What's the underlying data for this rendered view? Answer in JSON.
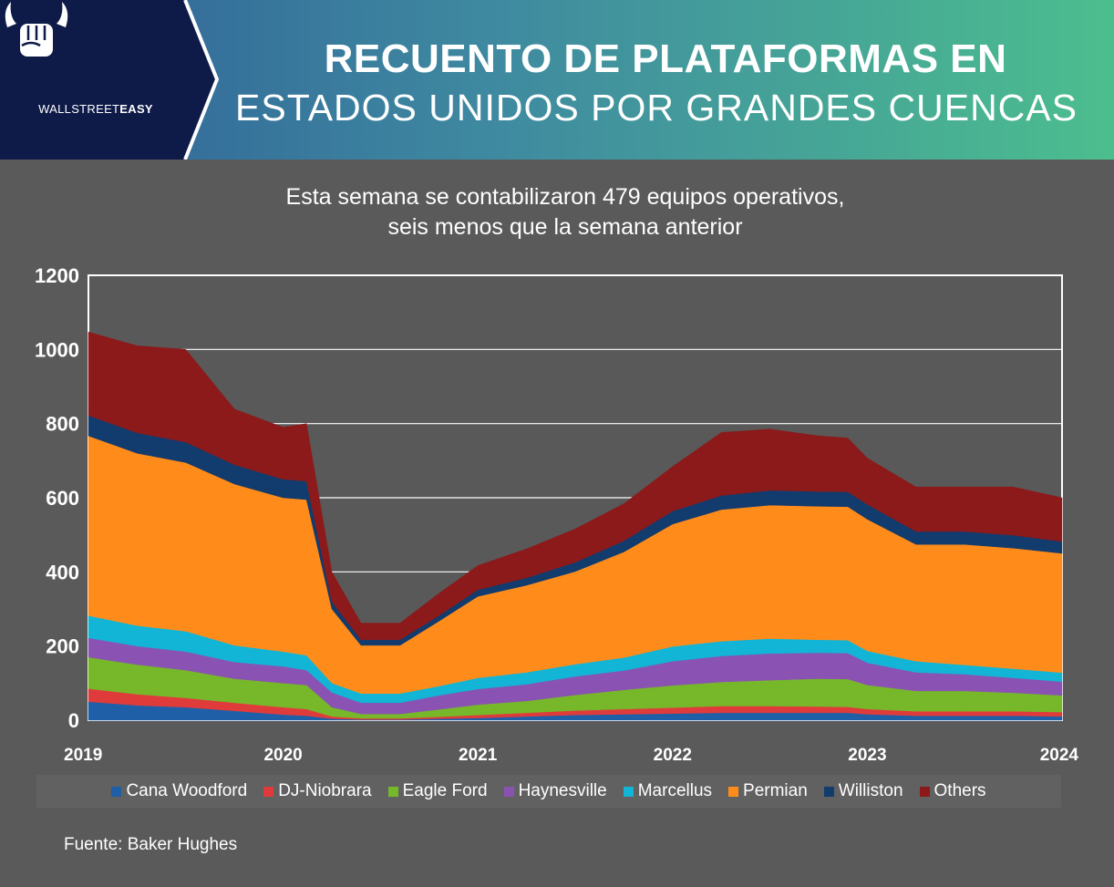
{
  "header": {
    "brand_prefix": "WALLSTREET",
    "brand_suffix": "EASY",
    "title_line1": "RECUENTO DE PLATAFORMAS EN",
    "title_line2": "ESTADOS UNIDOS POR GRANDES CUENCAS"
  },
  "subtitle_line1": "Esta semana se contabilizaron 479 equipos operativos,",
  "subtitle_line2": "seis menos que la semana anterior",
  "source": "Fuente: Baker Hughes",
  "colors": {
    "header_dark": "#0e1a48",
    "background": "#5a5a5a",
    "gridline": "#ffffff"
  },
  "chart_data": {
    "type": "area",
    "stacked": true,
    "x": [
      2019.0,
      2019.25,
      2019.5,
      2019.75,
      2020.0,
      2020.12,
      2020.25,
      2020.4,
      2020.6,
      2020.8,
      2021.0,
      2021.25,
      2021.5,
      2021.75,
      2022.0,
      2022.25,
      2022.5,
      2022.75,
      2022.9,
      2023.0,
      2023.25,
      2023.5,
      2023.75,
      2024.0
    ],
    "series": [
      {
        "name": "Cana Woodford",
        "color": "#1f5fa8",
        "values": [
          50,
          40,
          35,
          25,
          15,
          12,
          4,
          2,
          2,
          4,
          6,
          10,
          14,
          16,
          18,
          20,
          20,
          20,
          20,
          16,
          12,
          12,
          12,
          10
        ]
      },
      {
        "name": "DJ-Niobrara",
        "color": "#e03b3b",
        "values": [
          35,
          30,
          25,
          22,
          20,
          18,
          6,
          3,
          3,
          5,
          8,
          10,
          12,
          14,
          16,
          18,
          18,
          17,
          16,
          14,
          12,
          12,
          12,
          12
        ]
      },
      {
        "name": "Eagle Ford",
        "color": "#76b82a",
        "values": [
          85,
          80,
          75,
          65,
          65,
          65,
          25,
          12,
          12,
          20,
          28,
          32,
          42,
          52,
          60,
          65,
          70,
          75,
          75,
          65,
          55,
          55,
          50,
          45
        ]
      },
      {
        "name": "Haynesville",
        "color": "#8a52b3",
        "values": [
          52,
          50,
          50,
          45,
          45,
          40,
          40,
          30,
          30,
          38,
          42,
          45,
          50,
          52,
          65,
          70,
          72,
          70,
          70,
          60,
          50,
          45,
          40,
          37
        ]
      },
      {
        "name": "Marcellus",
        "color": "#12b5d6",
        "values": [
          60,
          55,
          55,
          45,
          40,
          40,
          25,
          25,
          25,
          25,
          30,
          32,
          33,
          35,
          40,
          40,
          40,
          35,
          35,
          32,
          30,
          25,
          25,
          24
        ]
      },
      {
        "name": "Permian",
        "color": "#ff8c1a",
        "values": [
          485,
          465,
          455,
          435,
          415,
          420,
          200,
          130,
          130,
          175,
          220,
          235,
          250,
          285,
          330,
          355,
          360,
          360,
          360,
          355,
          315,
          325,
          325,
          322
        ]
      },
      {
        "name": "Williston",
        "color": "#123b6e",
        "values": [
          55,
          55,
          55,
          52,
          50,
          50,
          20,
          15,
          15,
          15,
          18,
          20,
          25,
          30,
          35,
          38,
          40,
          40,
          40,
          40,
          35,
          35,
          35,
          32
        ]
      },
      {
        "name": "Others",
        "color": "#8c1a1a",
        "values": [
          225,
          235,
          250,
          150,
          140,
          155,
          80,
          45,
          45,
          60,
          65,
          78,
          90,
          100,
          120,
          170,
          165,
          150,
          145,
          125,
          120,
          120,
          130,
          118
        ]
      }
    ],
    "ylim": [
      0,
      1200
    ],
    "xlim": [
      2019,
      2024
    ],
    "yticks": [
      0,
      200,
      400,
      600,
      800,
      1000,
      1200
    ],
    "xticks": [
      2019,
      2020,
      2021,
      2022,
      2023,
      2024
    ],
    "grid": true,
    "legend_position": "bottom"
  }
}
